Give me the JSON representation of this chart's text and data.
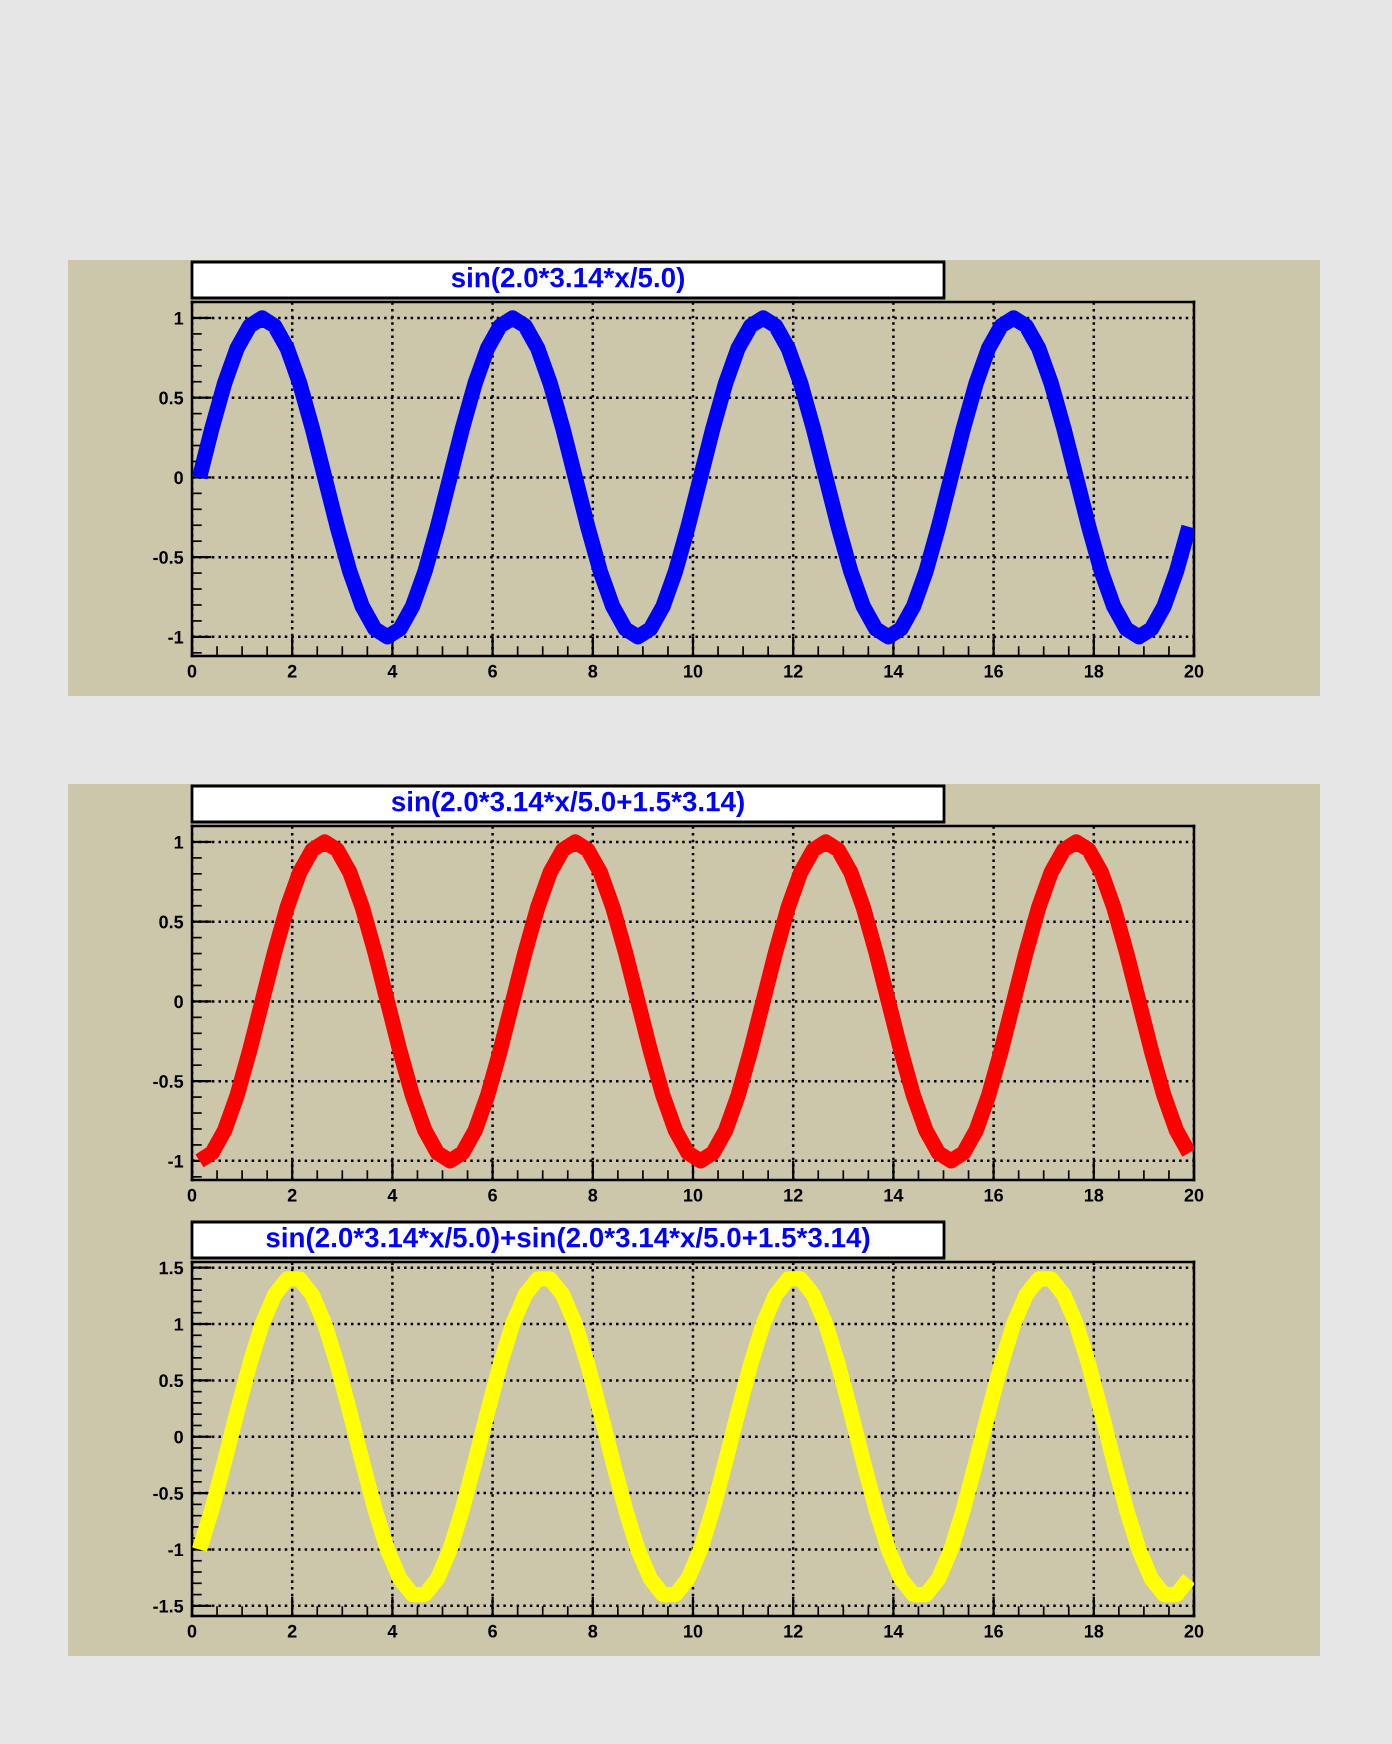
{
  "chart_data": [
    {
      "type": "line",
      "title": "sin(2.0*3.14*x/5.0)",
      "xlim": [
        0,
        20
      ],
      "ylim": [
        -1.12,
        1.1
      ],
      "xticks": [
        0,
        2,
        4,
        6,
        8,
        10,
        12,
        14,
        16,
        18,
        20
      ],
      "yticks": [
        -1,
        -0.5,
        0,
        0.5,
        1
      ],
      "grid": true,
      "line_style": "solid",
      "marker": "none",
      "series": [
        {
          "color": "#0000ff",
          "values": [
            0,
            0.31,
            0.59,
            0.81,
            0.95,
            1,
            0.95,
            0.81,
            0.59,
            0.31,
            0,
            -0.31,
            -0.59,
            -0.81,
            -0.95,
            -1,
            -0.95,
            -0.81,
            -0.59,
            -0.31,
            0,
            0.31,
            0.59,
            0.81,
            0.95,
            1,
            0.95,
            0.81,
            0.59,
            0.31,
            0,
            -0.31,
            -0.59,
            -0.81,
            -0.95,
            -1,
            -0.95,
            -0.81,
            -0.59,
            -0.31,
            0,
            0.31,
            0.59,
            0.81,
            0.95,
            1,
            0.95,
            0.81,
            0.59,
            0.31,
            0,
            -0.31,
            -0.59,
            -0.81,
            -0.95,
            -1,
            -0.95,
            -0.81,
            -0.59,
            -0.31,
            0,
            0.31,
            0.59,
            0.81,
            0.95,
            1,
            0.95,
            0.81,
            0.59,
            0.31,
            0,
            -0.31,
            -0.59,
            -0.81,
            -0.95,
            -1,
            -0.95,
            -0.81,
            -0.59,
            -0.31
          ]
        }
      ],
      "x": [
        0.15,
        0.4,
        0.65,
        0.9,
        1.15,
        1.4,
        1.65,
        1.9,
        2.15,
        2.4,
        2.65,
        2.9,
        3.15,
        3.4,
        3.65,
        3.9,
        4.15,
        4.4,
        4.65,
        4.9,
        5.15,
        5.4,
        5.65,
        5.9,
        6.15,
        6.4,
        6.65,
        6.9,
        7.15,
        7.4,
        7.65,
        7.9,
        8.15,
        8.4,
        8.65,
        8.9,
        9.15,
        9.4,
        9.65,
        9.9,
        10.15,
        10.4,
        10.65,
        10.9,
        11.15,
        11.4,
        11.65,
        11.9,
        12.15,
        12.4,
        12.65,
        12.9,
        13.15,
        13.4,
        13.65,
        13.9,
        14.15,
        14.4,
        14.65,
        14.9,
        15.15,
        15.4,
        15.65,
        15.9,
        16.15,
        16.4,
        16.65,
        16.9,
        17.15,
        17.4,
        17.65,
        17.9,
        18.15,
        18.4,
        18.65,
        18.9,
        19.15,
        19.4,
        19.65,
        19.9
      ]
    },
    {
      "type": "line",
      "title": "sin(2.0*3.14*x/5.0+1.5*3.14)",
      "xlim": [
        0,
        20
      ],
      "ylim": [
        -1.12,
        1.1
      ],
      "xticks": [
        0,
        2,
        4,
        6,
        8,
        10,
        12,
        14,
        16,
        18,
        20
      ],
      "yticks": [
        -1,
        -0.5,
        0,
        0.5,
        1
      ],
      "grid": true,
      "line_style": "solid",
      "marker": "none",
      "series": [
        {
          "color": "#ff0000",
          "values": [
            -1,
            -0.95,
            -0.81,
            -0.59,
            -0.31,
            0,
            0.31,
            0.59,
            0.81,
            0.95,
            1,
            0.95,
            0.81,
            0.59,
            0.31,
            0,
            -0.31,
            -0.59,
            -0.81,
            -0.95,
            -1,
            -0.95,
            -0.81,
            -0.59,
            -0.31,
            0,
            0.31,
            0.59,
            0.81,
            0.95,
            1,
            0.95,
            0.81,
            0.59,
            0.31,
            0,
            -0.31,
            -0.59,
            -0.81,
            -0.95,
            -1,
            -0.95,
            -0.81,
            -0.59,
            -0.31,
            0,
            0.31,
            0.59,
            0.81,
            0.95,
            1,
            0.95,
            0.81,
            0.59,
            0.31,
            0,
            -0.31,
            -0.59,
            -0.81,
            -0.95,
            -1,
            -0.95,
            -0.81,
            -0.59,
            -0.31,
            0,
            0.31,
            0.59,
            0.81,
            0.95,
            1,
            0.95,
            0.81,
            0.59,
            0.31,
            0,
            -0.31,
            -0.59,
            -0.81,
            -0.95
          ]
        }
      ],
      "x": [
        0.15,
        0.4,
        0.65,
        0.9,
        1.15,
        1.4,
        1.65,
        1.9,
        2.15,
        2.4,
        2.65,
        2.9,
        3.15,
        3.4,
        3.65,
        3.9,
        4.15,
        4.4,
        4.65,
        4.9,
        5.15,
        5.4,
        5.65,
        5.9,
        6.15,
        6.4,
        6.65,
        6.9,
        7.15,
        7.4,
        7.65,
        7.9,
        8.15,
        8.4,
        8.65,
        8.9,
        9.15,
        9.4,
        9.65,
        9.9,
        10.15,
        10.4,
        10.65,
        10.9,
        11.15,
        11.4,
        11.65,
        11.9,
        12.15,
        12.4,
        12.65,
        12.9,
        13.15,
        13.4,
        13.65,
        13.9,
        14.15,
        14.4,
        14.65,
        14.9,
        15.15,
        15.4,
        15.65,
        15.9,
        16.15,
        16.4,
        16.65,
        16.9,
        17.15,
        17.4,
        17.65,
        17.9,
        18.15,
        18.4,
        18.65,
        18.9,
        19.15,
        19.4,
        19.65,
        19.9
      ]
    },
    {
      "type": "line",
      "title": "sin(2.0*3.14*x/5.0)+sin(2.0*3.14*x/5.0+1.5*3.14)",
      "xlim": [
        0,
        20
      ],
      "ylim": [
        -1.59,
        1.55
      ],
      "xticks": [
        0,
        2,
        4,
        6,
        8,
        10,
        12,
        14,
        16,
        18,
        20
      ],
      "yticks": [
        -1.5,
        -1,
        -0.5,
        0,
        0.5,
        1,
        1.5
      ],
      "grid": true,
      "line_style": "solid",
      "marker": "none",
      "series": [
        {
          "color": "#ffff00",
          "values": [
            -1.0,
            -0.64,
            -0.22,
            0.22,
            0.64,
            1.0,
            1.26,
            1.4,
            1.4,
            1.26,
            1.0,
            0.64,
            0.22,
            -0.22,
            -0.64,
            -1.0,
            -1.26,
            -1.4,
            -1.4,
            -1.26,
            -1.0,
            -0.64,
            -0.22,
            0.22,
            0.64,
            1.0,
            1.26,
            1.4,
            1.4,
            1.26,
            1.0,
            0.64,
            0.22,
            -0.22,
            -0.64,
            -1.0,
            -1.26,
            -1.4,
            -1.4,
            -1.26,
            -1.0,
            -0.64,
            -0.22,
            0.22,
            0.64,
            1.0,
            1.26,
            1.4,
            1.4,
            1.26,
            1.0,
            0.64,
            0.22,
            -0.22,
            -0.64,
            -1.0,
            -1.26,
            -1.4,
            -1.4,
            -1.26,
            -1.0,
            -0.64,
            -0.22,
            0.22,
            0.64,
            1.0,
            1.26,
            1.4,
            1.4,
            1.26,
            1.0,
            0.64,
            0.22,
            -0.22,
            -0.64,
            -1.0,
            -1.26,
            -1.4,
            -1.4,
            -1.26
          ]
        }
      ],
      "x": [
        0.15,
        0.4,
        0.65,
        0.9,
        1.15,
        1.4,
        1.65,
        1.9,
        2.15,
        2.4,
        2.65,
        2.9,
        3.15,
        3.4,
        3.65,
        3.9,
        4.15,
        4.4,
        4.65,
        4.9,
        5.15,
        5.4,
        5.65,
        5.9,
        6.15,
        6.4,
        6.65,
        6.9,
        7.15,
        7.4,
        7.65,
        7.9,
        8.15,
        8.4,
        8.65,
        8.9,
        9.15,
        9.4,
        9.65,
        9.9,
        10.15,
        10.4,
        10.65,
        10.9,
        11.15,
        11.4,
        11.65,
        11.9,
        12.15,
        12.4,
        12.65,
        12.9,
        13.15,
        13.4,
        13.65,
        13.9,
        14.15,
        14.4,
        14.65,
        14.9,
        15.15,
        15.4,
        15.65,
        15.9,
        16.15,
        16.4,
        16.65,
        16.9,
        17.15,
        17.4,
        17.65,
        17.9,
        18.15,
        18.4,
        18.65,
        18.9,
        19.15,
        19.4,
        19.65,
        19.9
      ]
    }
  ]
}
